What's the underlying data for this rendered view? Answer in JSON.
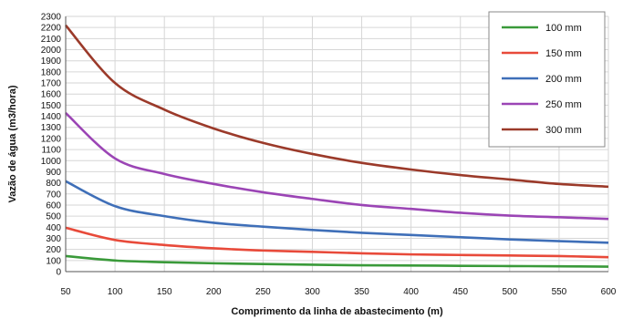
{
  "chart_data": {
    "type": "line",
    "xlabel": "Comprimento da linha de abastecimento (m)",
    "ylabel": "Vazão de água (m3/hora)",
    "xlim": [
      50,
      600
    ],
    "ylim": [
      0,
      2300
    ],
    "x_ticks": [
      50,
      100,
      150,
      200,
      250,
      300,
      350,
      400,
      450,
      500,
      550,
      600
    ],
    "y_ticks": [
      0,
      100,
      200,
      300,
      400,
      500,
      600,
      700,
      800,
      900,
      1000,
      1100,
      1200,
      1300,
      1400,
      1500,
      1600,
      1700,
      1800,
      1900,
      2000,
      2100,
      2200,
      2300
    ],
    "grid": true,
    "legend_position": "top-right",
    "x": [
      50,
      100,
      150,
      200,
      250,
      300,
      350,
      400,
      450,
      500,
      550,
      600
    ],
    "series": [
      {
        "name": "100 mm",
        "color": "#3a9a3a",
        "values": [
          140,
          100,
          85,
          75,
          68,
          62,
          57,
          55,
          52,
          50,
          48,
          45
        ]
      },
      {
        "name": "150 mm",
        "color": "#e84a3a",
        "values": [
          395,
          285,
          240,
          210,
          190,
          178,
          165,
          155,
          150,
          145,
          140,
          130
        ]
      },
      {
        "name": "200 mm",
        "color": "#3f6fb8",
        "values": [
          815,
          590,
          500,
          440,
          405,
          375,
          350,
          330,
          310,
          290,
          275,
          260
        ]
      },
      {
        "name": "250 mm",
        "color": "#9b45b5",
        "values": [
          1430,
          1020,
          880,
          790,
          715,
          655,
          600,
          565,
          530,
          505,
          490,
          475
        ]
      },
      {
        "name": "300 mm",
        "color": "#9b3a2a",
        "values": [
          2220,
          1700,
          1460,
          1290,
          1160,
          1060,
          980,
          920,
          870,
          830,
          790,
          765
        ]
      }
    ]
  }
}
